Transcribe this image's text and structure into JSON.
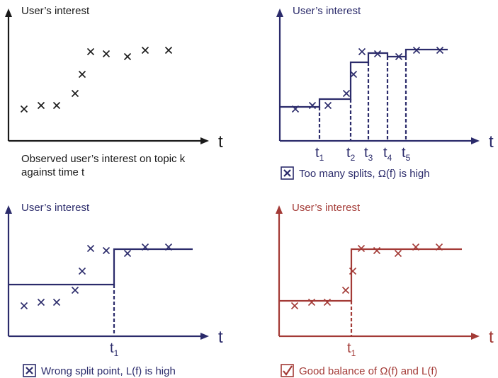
{
  "colors": {
    "black": "#1a1a1a",
    "navy": "#2b2b6b",
    "red": "#a33a36"
  },
  "panels": [
    {
      "id": "observed",
      "ylabel": "User’s interest",
      "xlabel": "t",
      "caption_lines": [
        "Observed user’s interest on topic k",
        "against time t"
      ],
      "color": "black"
    },
    {
      "id": "too-many-splits",
      "ylabel": "User’s interest",
      "xlabel": "t",
      "split_labels": [
        "t1",
        "t2",
        "t3",
        "t4",
        "t5"
      ],
      "caption_icon": "x-box-icon",
      "caption": "Too many splits, Ω(f) is high",
      "color": "navy"
    },
    {
      "id": "wrong-split",
      "ylabel": "User’s interest",
      "xlabel": "t",
      "split_labels": [
        "t1"
      ],
      "caption_icon": "x-box-icon",
      "caption": "Wrong split point, L(f) is high",
      "color": "navy"
    },
    {
      "id": "good-balance",
      "ylabel": "User’s interest",
      "xlabel": "t",
      "split_labels": [
        "t1"
      ],
      "caption_icon": "check-box-icon",
      "caption": "Good balance of Ω(f) and L(f)",
      "color": "red"
    }
  ]
}
